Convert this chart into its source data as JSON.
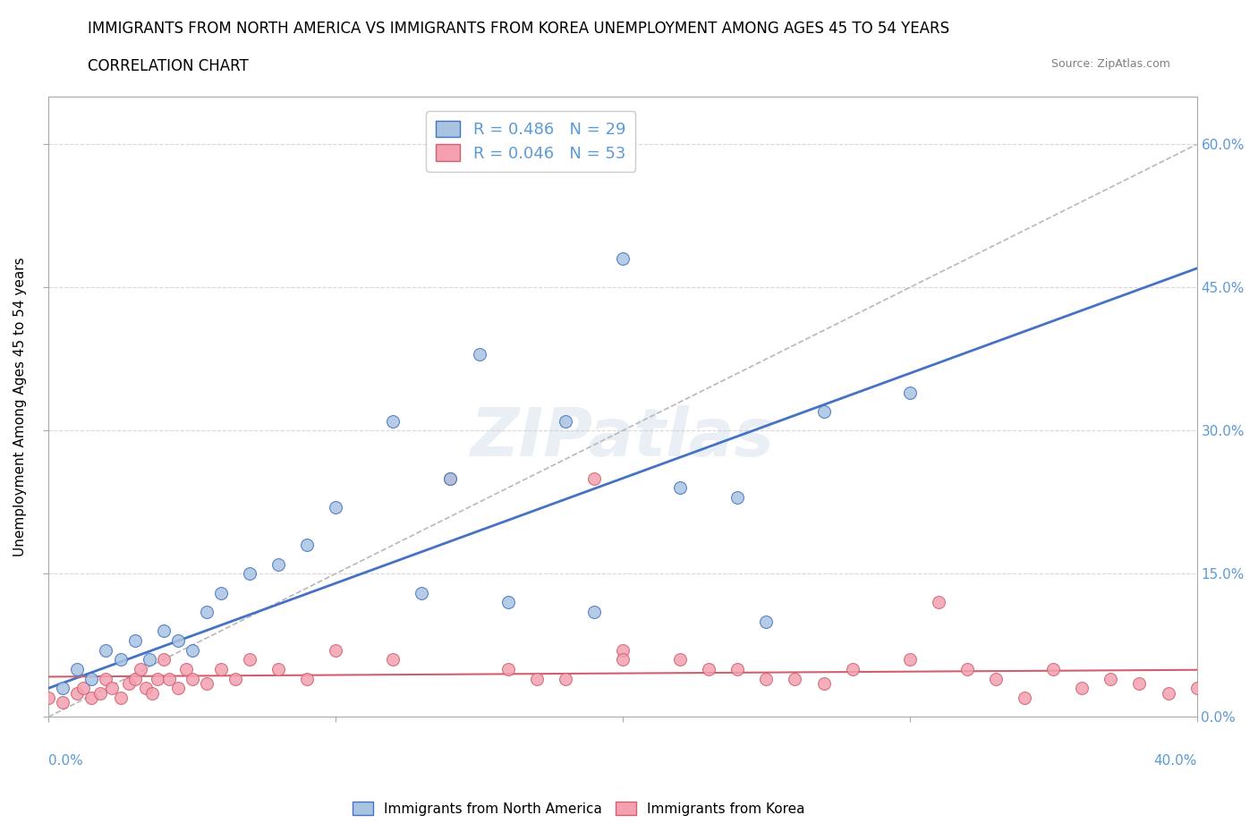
{
  "title_line1": "IMMIGRANTS FROM NORTH AMERICA VS IMMIGRANTS FROM KOREA UNEMPLOYMENT AMONG AGES 45 TO 54 YEARS",
  "title_line2": "CORRELATION CHART",
  "source_text": "Source: ZipAtlas.com",
  "ylabel": "Unemployment Among Ages 45 to 54 years",
  "legend1_label": "R = 0.486   N = 29",
  "legend2_label": "R = 0.046   N = 53",
  "scatter_blue": {
    "x": [
      0.005,
      0.01,
      0.015,
      0.02,
      0.025,
      0.03,
      0.035,
      0.04,
      0.045,
      0.05,
      0.055,
      0.06,
      0.07,
      0.08,
      0.09,
      0.1,
      0.12,
      0.14,
      0.15,
      0.18,
      0.2,
      0.22,
      0.24,
      0.25,
      0.27,
      0.3,
      0.13,
      0.16,
      0.19
    ],
    "y": [
      0.03,
      0.05,
      0.04,
      0.07,
      0.06,
      0.08,
      0.06,
      0.09,
      0.08,
      0.07,
      0.11,
      0.13,
      0.15,
      0.16,
      0.18,
      0.22,
      0.31,
      0.25,
      0.38,
      0.31,
      0.48,
      0.24,
      0.23,
      0.1,
      0.32,
      0.34,
      0.13,
      0.12,
      0.11
    ]
  },
  "scatter_pink": {
    "x": [
      0.0,
      0.005,
      0.01,
      0.012,
      0.015,
      0.018,
      0.02,
      0.022,
      0.025,
      0.028,
      0.03,
      0.032,
      0.034,
      0.036,
      0.038,
      0.04,
      0.042,
      0.045,
      0.048,
      0.05,
      0.055,
      0.06,
      0.065,
      0.07,
      0.08,
      0.09,
      0.1,
      0.12,
      0.14,
      0.16,
      0.18,
      0.2,
      0.22,
      0.24,
      0.26,
      0.28,
      0.3,
      0.32,
      0.33,
      0.35,
      0.36,
      0.37,
      0.38,
      0.39,
      0.4,
      0.23,
      0.25,
      0.27,
      0.2,
      0.19,
      0.17,
      0.31,
      0.34
    ],
    "y": [
      0.02,
      0.015,
      0.025,
      0.03,
      0.02,
      0.025,
      0.04,
      0.03,
      0.02,
      0.035,
      0.04,
      0.05,
      0.03,
      0.025,
      0.04,
      0.06,
      0.04,
      0.03,
      0.05,
      0.04,
      0.035,
      0.05,
      0.04,
      0.06,
      0.05,
      0.04,
      0.07,
      0.06,
      0.25,
      0.05,
      0.04,
      0.07,
      0.06,
      0.05,
      0.04,
      0.05,
      0.06,
      0.05,
      0.04,
      0.05,
      0.03,
      0.04,
      0.035,
      0.025,
      0.03,
      0.05,
      0.04,
      0.035,
      0.06,
      0.25,
      0.04,
      0.12,
      0.02
    ]
  },
  "trend_blue_slope": 1.1,
  "trend_blue_intercept": 0.03,
  "trend_pink_slope": 0.018,
  "trend_pink_intercept": 0.042,
  "diag_slope": 1.5,
  "diag_intercept": 0.0,
  "xlim": [
    0.0,
    0.4
  ],
  "ylim": [
    0.0,
    0.65
  ],
  "background_color": "#ffffff",
  "grid_color": "#cccccc",
  "watermark_text": "ZIPatlas",
  "title_fontsize": 12,
  "axis_label_color": "#5b9bd5",
  "dot_blue_color": "#a8c4e0",
  "dot_pink_color": "#f4a0b0",
  "line_blue_color": "#4472c4",
  "line_pink_color": "#d06070",
  "trend_line_color": "#b8b8b8",
  "bottom_legend_labels": [
    "Immigrants from North America",
    "Immigrants from Korea"
  ]
}
